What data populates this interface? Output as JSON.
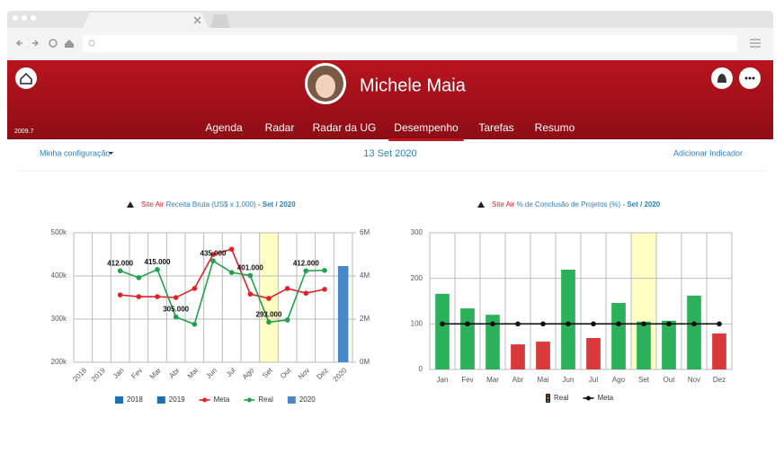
{
  "header": {
    "name": "Michele Maia",
    "version": "2009.7",
    "nav": [
      "Agenda",
      "Radar",
      "Radar da UG",
      "Desempenho",
      "Tarefas",
      "Resumo"
    ],
    "active": "Desempenho"
  },
  "toolbar": {
    "config": "Minha configuração",
    "date": "13 Set 2020",
    "add": "Adicionar Indicador"
  },
  "chart_data": [
    {
      "type": "combo",
      "title_prefix": "Site Air",
      "title": "Receita Bruta (US$ x 1.000)",
      "subtitle": "- Set / 2020",
      "categories": [
        "2018",
        "2019",
        "Jan",
        "Fev",
        "Mar",
        "Abr",
        "Mai",
        "Jun",
        "Jul",
        "Ago",
        "Set",
        "Out",
        "Nov",
        "Dez",
        "2020"
      ],
      "highlight": "Set",
      "x_label_rotation": -45,
      "grid": true,
      "ylim": [
        200000,
        500000
      ],
      "yticks": [
        {
          "value": 200000,
          "label": "200k"
        },
        {
          "value": 300000,
          "label": "300k"
        },
        {
          "value": 400000,
          "label": "400k"
        },
        {
          "value": 500000,
          "label": "500k"
        }
      ],
      "y2lim": [
        0,
        6000000
      ],
      "y2ticks": [
        {
          "value": 0,
          "label": "0M"
        },
        {
          "value": 2000000,
          "label": "2M"
        },
        {
          "value": 4000000,
          "label": "4M"
        },
        {
          "value": 6000000,
          "label": "6M"
        }
      ],
      "series": [
        {
          "name": "2018",
          "type": "bar",
          "axis": "y2",
          "color": "#1a6fb5",
          "values": [
            null,
            null,
            null,
            null,
            null,
            null,
            null,
            null,
            null,
            null,
            null,
            null,
            null,
            null,
            null
          ]
        },
        {
          "name": "2019",
          "type": "bar",
          "axis": "y2",
          "color": "#1a6fb5",
          "values": [
            null,
            null,
            null,
            null,
            null,
            null,
            null,
            null,
            null,
            null,
            null,
            null,
            null,
            null,
            null
          ]
        },
        {
          "name": "Meta",
          "type": "line",
          "color": "#e02226",
          "values": [
            null,
            null,
            356000,
            352000,
            352000,
            350000,
            371000,
            450000,
            462000,
            358000,
            348000,
            371000,
            360000,
            369000,
            null
          ]
        },
        {
          "name": "Real",
          "type": "line",
          "color": "#22a04b",
          "values": [
            null,
            null,
            412000,
            396000,
            415000,
            305000,
            288000,
            435000,
            408000,
            401000,
            293000,
            298000,
            412000,
            413000,
            null
          ],
          "value_labels": [
            null,
            null,
            "412.000",
            null,
            "415.000",
            "305.000",
            null,
            "435.000",
            null,
            "401.000",
            "293.000",
            null,
            "412.000",
            null,
            null
          ]
        },
        {
          "name": "2020",
          "type": "bar",
          "axis": "y2",
          "color": "#4a86c8",
          "values": [
            null,
            null,
            null,
            null,
            null,
            null,
            null,
            null,
            null,
            null,
            null,
            null,
            null,
            null,
            4460000
          ]
        }
      ]
    },
    {
      "type": "combo",
      "title_prefix": "Site Air",
      "title": "% de Conclusão de Projetos (%)",
      "subtitle": "- Set / 2020",
      "categories": [
        "Jan",
        "Fev",
        "Mar",
        "Abr",
        "Mai",
        "Jun",
        "Jul",
        "Ago",
        "Set",
        "Out",
        "Nov",
        "Dez"
      ],
      "highlight": "Set",
      "x_label_rotation": 0,
      "grid": true,
      "ylim": [
        0,
        300
      ],
      "yticks": [
        0,
        100,
        200,
        300
      ],
      "series": [
        {
          "name": "Real",
          "type": "bar",
          "legend_icon": "traffic-light",
          "values": [
            166,
            134,
            120,
            55,
            61,
            219,
            69,
            146,
            105,
            107,
            162,
            79
          ],
          "colors": [
            "#2bb15a",
            "#2bb15a",
            "#2bb15a",
            "#d9393a",
            "#d9393a",
            "#2bb15a",
            "#d9393a",
            "#2bb15a",
            "#2bb15a",
            "#2bb15a",
            "#2bb15a",
            "#d9393a"
          ]
        },
        {
          "name": "Meta",
          "type": "line",
          "color": "#111111",
          "values": [
            100,
            100,
            100,
            100,
            100,
            100,
            100,
            100,
            100,
            100,
            100,
            100
          ]
        }
      ]
    }
  ]
}
